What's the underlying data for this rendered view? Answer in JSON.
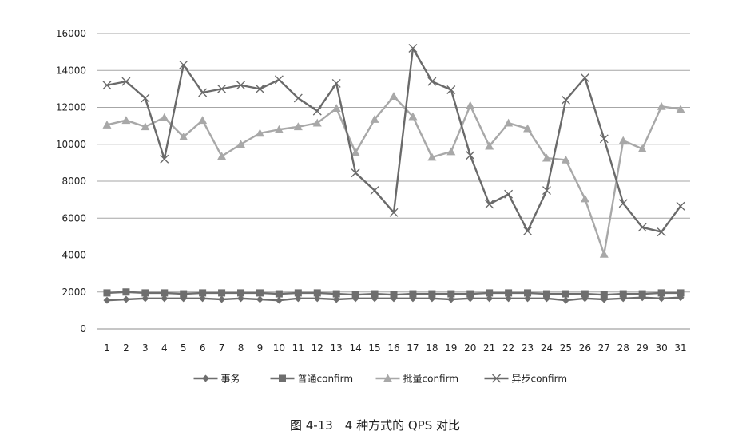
{
  "chart_data": {
    "type": "line",
    "title": "",
    "xlabel": "",
    "ylabel": "",
    "x": [
      1,
      2,
      3,
      4,
      5,
      6,
      7,
      8,
      9,
      10,
      11,
      12,
      13,
      14,
      15,
      16,
      17,
      18,
      19,
      20,
      21,
      22,
      23,
      24,
      25,
      26,
      27,
      28,
      29,
      30,
      31
    ],
    "x_tick_labels": [
      "1",
      "2",
      "3",
      "4",
      "5",
      "6",
      "7",
      "8",
      "9",
      "10",
      "11",
      "12",
      "13",
      "14",
      "15",
      "16",
      "17",
      "18",
      "19",
      "20",
      "21",
      "22",
      "23",
      "24",
      "25",
      "26",
      "27",
      "28",
      "29",
      "30",
      "31"
    ],
    "ylim": [
      0,
      16000
    ],
    "y_ticks": [
      0,
      2000,
      4000,
      6000,
      8000,
      10000,
      12000,
      14000,
      16000
    ],
    "y_tick_labels": [
      "0",
      "2000",
      "4000",
      "6000",
      "8000",
      "10000",
      "12000",
      "14000",
      "16000"
    ],
    "grid": "horizontal",
    "legend_position": "bottom",
    "series": [
      {
        "name": "事务",
        "marker": "diamond",
        "color": "#6e6e6e",
        "values": [
          1550,
          1600,
          1650,
          1650,
          1650,
          1650,
          1600,
          1650,
          1600,
          1550,
          1650,
          1650,
          1600,
          1650,
          1650,
          1650,
          1650,
          1650,
          1600,
          1650,
          1650,
          1650,
          1650,
          1650,
          1550,
          1650,
          1600,
          1650,
          1700,
          1650,
          1700
        ]
      },
      {
        "name": "普通confirm",
        "marker": "square",
        "color": "#6e6e6e",
        "values": [
          1950,
          2000,
          1950,
          1950,
          1900,
          1950,
          1950,
          1950,
          1950,
          1900,
          1950,
          1950,
          1900,
          1850,
          1900,
          1850,
          1900,
          1900,
          1900,
          1900,
          1950,
          1950,
          1950,
          1900,
          1900,
          1900,
          1850,
          1900,
          1900,
          1950,
          1950
        ]
      },
      {
        "name": "批量confirm",
        "marker": "triangle",
        "color": "#a8a8a8",
        "values": [
          11050,
          11300,
          10950,
          11450,
          10400,
          11300,
          9350,
          10000,
          10600,
          10800,
          10950,
          11150,
          11950,
          9550,
          11350,
          12600,
          11500,
          9300,
          9600,
          12100,
          9900,
          11150,
          10850,
          9250,
          9150,
          7050,
          4050,
          10200,
          9750,
          12050,
          11900
        ]
      },
      {
        "name": "异步confirm",
        "marker": "x",
        "color": "#6a6a6a",
        "values": [
          13200,
          13400,
          12500,
          9200,
          14300,
          12800,
          13000,
          13200,
          13000,
          13500,
          12500,
          11800,
          13300,
          8450,
          7500,
          6300,
          15200,
          13400,
          12950,
          9400,
          6750,
          7300,
          5300,
          7500,
          12400,
          13600,
          10300,
          6800,
          5500,
          5250,
          6650
        ]
      }
    ]
  },
  "caption": "图 4-13　4 种方式的 QPS 对比"
}
